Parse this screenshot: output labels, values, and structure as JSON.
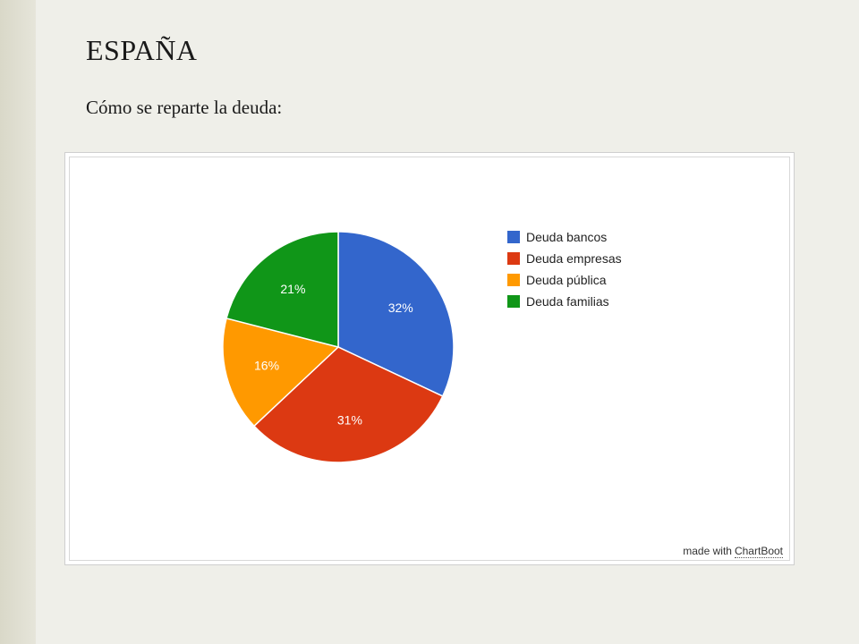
{
  "slide": {
    "title": "ESPAÑA",
    "subtitle": "Cómo se reparte la deuda:"
  },
  "watermark": {
    "prefix": "made with",
    "brand": "ChartBoot"
  },
  "chart_data": {
    "type": "pie",
    "title": "",
    "categories": [
      "Deuda bancos",
      "Deuda empresas",
      "Deuda pública",
      "Deuda familias"
    ],
    "values": [
      32,
      31,
      16,
      21
    ],
    "labels": [
      "32%",
      "31%",
      "16%",
      "21%"
    ],
    "colors": [
      "#3366cc",
      "#dc3912",
      "#ff9900",
      "#109618"
    ],
    "legend_position": "right",
    "start_angle": "12 o'clock, clockwise"
  }
}
